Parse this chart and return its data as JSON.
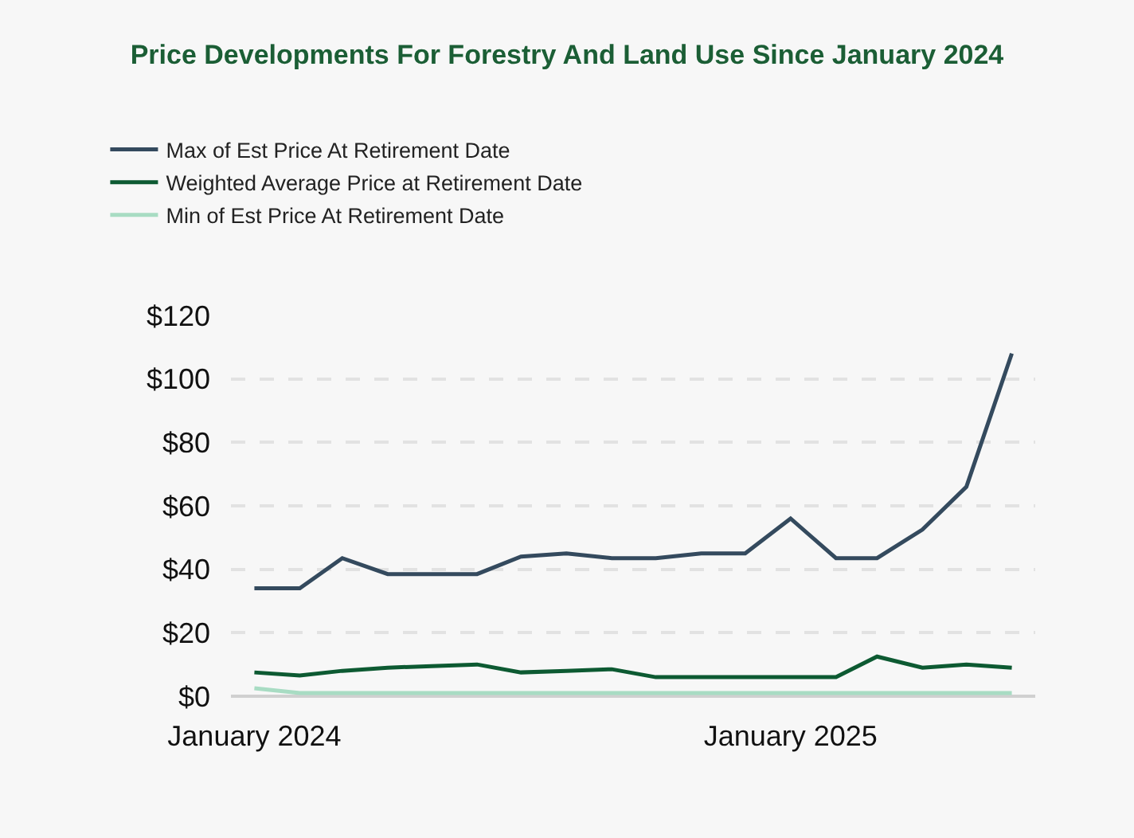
{
  "chart_data": {
    "type": "line",
    "title": "Price Developments For Forestry And Land Use Since January 2024",
    "x": [
      "2024-01",
      "2024-02",
      "2024-03",
      "2024-04",
      "2024-05",
      "2024-06",
      "2024-07",
      "2024-08",
      "2024-09",
      "2024-10",
      "2024-11",
      "2024-12",
      "2025-01",
      "2025-02",
      "2025-03",
      "2025-04",
      "2025-05",
      "2025-06"
    ],
    "series": [
      {
        "name": "Max of Est Price At Retirement Date",
        "color": "#344a5e",
        "values": [
          34,
          34,
          43.5,
          38.5,
          38.5,
          38.5,
          44,
          45,
          43.5,
          43.5,
          45,
          45,
          56,
          43.5,
          43.5,
          52.5,
          66,
          108
        ]
      },
      {
        "name": "Weighted Average Price at Retirement Date",
        "color": "#0d5a32",
        "values": [
          7.5,
          6.5,
          8,
          9,
          9.5,
          10,
          7.5,
          8,
          8.5,
          6,
          6,
          6,
          6,
          6,
          12.5,
          9,
          10,
          9
        ]
      },
      {
        "name": "Min of Est Price At Retirement Date",
        "color": "#a8dcc3",
        "values": [
          2.5,
          1,
          1,
          1,
          1,
          1,
          1,
          1,
          1,
          1,
          1,
          1,
          1,
          1,
          1,
          1,
          1,
          1
        ]
      }
    ],
    "xlim": [
      "2023-12-16",
      "2025-06-17"
    ],
    "xticks": [
      {
        "value": "2024-01",
        "label": "January 2024"
      },
      {
        "value": "2025-01",
        "label": "January 2025"
      }
    ],
    "ylim": [
      0,
      120
    ],
    "yticks": [
      {
        "value": 0,
        "label": "$0"
      },
      {
        "value": 20,
        "label": "$20"
      },
      {
        "value": 40,
        "label": "$40"
      },
      {
        "value": 60,
        "label": "$60"
      },
      {
        "value": 80,
        "label": "$80"
      },
      {
        "value": 100,
        "label": "$100"
      },
      {
        "value": 120,
        "label": "$120"
      }
    ],
    "grid": "y",
    "legend": "top left",
    "marker": "none",
    "line_style": "solid"
  }
}
